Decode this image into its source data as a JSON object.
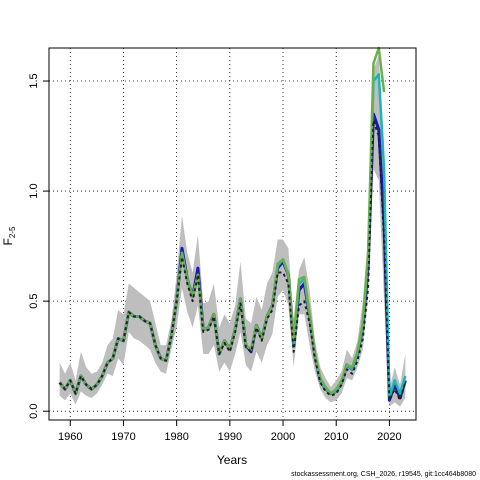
{
  "chart_data": {
    "type": "line",
    "xlabel": "Years",
    "ylabel": "F",
    "ylabel_sub": "2-5",
    "xlim": [
      1956,
      2025
    ],
    "ylim": [
      -0.04,
      1.65
    ],
    "x_ticks": [
      1960,
      1970,
      1980,
      1990,
      2000,
      2010,
      2020
    ],
    "y_ticks": [
      0.0,
      0.5,
      1.0,
      1.5
    ],
    "y_tick_labels": [
      "0.0",
      "0.5",
      "1.0",
      "1.5"
    ],
    "grid": true,
    "band": {
      "color": "#bebebe",
      "x": [
        1958,
        1959,
        1960,
        1961,
        1962,
        1963,
        1964,
        1965,
        1966,
        1967,
        1968,
        1969,
        1970,
        1971,
        1972,
        1973,
        1974,
        1975,
        1976,
        1977,
        1978,
        1979,
        1980,
        1981,
        1982,
        1983,
        1984,
        1985,
        1986,
        1987,
        1988,
        1989,
        1990,
        1991,
        1992,
        1993,
        1994,
        1995,
        1996,
        1997,
        1998,
        1999,
        2000,
        2001,
        2002,
        2003,
        2004,
        2005,
        2006,
        2007,
        2008,
        2009,
        2010,
        2011,
        2012,
        2013,
        2014,
        2015,
        2016,
        2017,
        2018,
        2019,
        2020,
        2021,
        2022,
        2023
      ],
      "lower": [
        0.07,
        0.05,
        0.08,
        0.03,
        0.09,
        0.07,
        0.06,
        0.08,
        0.12,
        0.17,
        0.16,
        0.24,
        0.21,
        0.36,
        0.33,
        0.32,
        0.3,
        0.28,
        0.22,
        0.18,
        0.17,
        0.28,
        0.38,
        0.56,
        0.45,
        0.38,
        0.48,
        0.26,
        0.26,
        0.3,
        0.18,
        0.22,
        0.18,
        0.26,
        0.36,
        0.21,
        0.18,
        0.27,
        0.22,
        0.3,
        0.35,
        0.52,
        0.55,
        0.48,
        0.2,
        0.44,
        0.44,
        0.3,
        0.18,
        0.1,
        0.06,
        0.04,
        0.05,
        0.08,
        0.15,
        0.14,
        0.2,
        0.28,
        0.52,
        1.1,
        1.05,
        0.5,
        0.02,
        0.04,
        0.02,
        0.06
      ],
      "upper": [
        0.22,
        0.17,
        0.22,
        0.14,
        0.27,
        0.2,
        0.17,
        0.18,
        0.22,
        0.3,
        0.33,
        0.46,
        0.44,
        0.58,
        0.56,
        0.54,
        0.52,
        0.5,
        0.4,
        0.3,
        0.3,
        0.41,
        0.62,
        0.89,
        0.72,
        0.63,
        0.8,
        0.49,
        0.5,
        0.58,
        0.38,
        0.44,
        0.4,
        0.48,
        0.68,
        0.42,
        0.4,
        0.52,
        0.46,
        0.58,
        0.63,
        0.78,
        0.78,
        0.74,
        0.42,
        0.64,
        0.7,
        0.55,
        0.32,
        0.2,
        0.15,
        0.11,
        0.14,
        0.18,
        0.28,
        0.24,
        0.32,
        0.5,
        0.8,
        1.55,
        1.62,
        1.2,
        0.1,
        0.2,
        0.12,
        0.26
      ]
    },
    "series": [
      {
        "color": "#1a1ab0",
        "width": 3,
        "dash": "",
        "x": [
          1958,
          1959,
          1960,
          1961,
          1962,
          1963,
          1964,
          1965,
          1966,
          1967,
          1968,
          1969,
          1970,
          1971,
          1972,
          1973,
          1974,
          1975,
          1976,
          1977,
          1978,
          1979,
          1980,
          1981,
          1982,
          1983,
          1984,
          1985,
          1986,
          1987,
          1988,
          1989,
          1990,
          1991,
          1992,
          1993,
          1994,
          1995,
          1996,
          1997,
          1998,
          1999,
          2000,
          2001,
          2002,
          2003,
          2004,
          2005,
          2006,
          2007,
          2008,
          2009,
          2010,
          2011,
          2012,
          2013,
          2014,
          2015,
          2016,
          2017,
          2018,
          2019,
          2020,
          2021,
          2022,
          2023
        ],
        "y": [
          0.13,
          0.1,
          0.14,
          0.08,
          0.16,
          0.12,
          0.1,
          0.12,
          0.16,
          0.22,
          0.24,
          0.33,
          0.32,
          0.45,
          0.43,
          0.43,
          0.41,
          0.4,
          0.3,
          0.24,
          0.23,
          0.34,
          0.5,
          0.74,
          0.6,
          0.52,
          0.65,
          0.37,
          0.38,
          0.44,
          0.26,
          0.32,
          0.28,
          0.37,
          0.51,
          0.3,
          0.27,
          0.39,
          0.33,
          0.43,
          0.48,
          0.65,
          0.68,
          0.62,
          0.3,
          0.55,
          0.58,
          0.43,
          0.25,
          0.14,
          0.1,
          0.08,
          0.09,
          0.13,
          0.21,
          0.19,
          0.26,
          0.38,
          0.66,
          1.35,
          1.28,
          0.85,
          0.05,
          0.12,
          0.06,
          0.14
        ]
      },
      {
        "color": "#1eb4b4",
        "width": 2.5,
        "dash": "",
        "x": [
          1958,
          1959,
          1960,
          1961,
          1962,
          1963,
          1964,
          1965,
          1966,
          1967,
          1968,
          1969,
          1970,
          1971,
          1972,
          1973,
          1974,
          1975,
          1976,
          1977,
          1978,
          1979,
          1980,
          1981,
          1982,
          1983,
          1984,
          1985,
          1986,
          1987,
          1988,
          1989,
          1990,
          1991,
          1992,
          1993,
          1994,
          1995,
          1996,
          1997,
          1998,
          1999,
          2000,
          2001,
          2002,
          2003,
          2004,
          2005,
          2006,
          2007,
          2008,
          2009,
          2010,
          2011,
          2012,
          2013,
          2014,
          2015,
          2016,
          2017,
          2018,
          2019,
          2020,
          2021,
          2022,
          2023
        ],
        "y": [
          0.13,
          0.1,
          0.14,
          0.08,
          0.16,
          0.12,
          0.1,
          0.12,
          0.16,
          0.22,
          0.24,
          0.33,
          0.32,
          0.45,
          0.43,
          0.43,
          0.41,
          0.4,
          0.3,
          0.24,
          0.23,
          0.34,
          0.5,
          0.72,
          0.6,
          0.52,
          0.62,
          0.37,
          0.38,
          0.44,
          0.26,
          0.32,
          0.28,
          0.37,
          0.51,
          0.3,
          0.28,
          0.39,
          0.33,
          0.43,
          0.48,
          0.66,
          0.69,
          0.62,
          0.3,
          0.58,
          0.6,
          0.43,
          0.25,
          0.14,
          0.1,
          0.08,
          0.09,
          0.13,
          0.21,
          0.19,
          0.26,
          0.39,
          0.7,
          1.5,
          1.53,
          1.1,
          0.06,
          0.14,
          0.08,
          0.16
        ]
      },
      {
        "color": "#6ab04c",
        "width": 2.5,
        "dash": "",
        "x": [
          1958,
          1959,
          1960,
          1961,
          1962,
          1963,
          1964,
          1965,
          1966,
          1967,
          1968,
          1969,
          1970,
          1971,
          1972,
          1973,
          1974,
          1975,
          1976,
          1977,
          1978,
          1979,
          1980,
          1981,
          1982,
          1983,
          1984,
          1985,
          1986,
          1987,
          1988,
          1989,
          1990,
          1991,
          1992,
          1993,
          1994,
          1995,
          1996,
          1997,
          1998,
          1999,
          2000,
          2001,
          2002,
          2003,
          2004,
          2005,
          2006,
          2007,
          2008,
          2009,
          2010,
          2011,
          2012,
          2013,
          2014,
          2015,
          2016,
          2017,
          2018,
          2019
        ],
        "y": [
          0.13,
          0.1,
          0.14,
          0.08,
          0.16,
          0.12,
          0.1,
          0.12,
          0.16,
          0.22,
          0.24,
          0.33,
          0.32,
          0.45,
          0.43,
          0.43,
          0.41,
          0.4,
          0.3,
          0.24,
          0.23,
          0.34,
          0.5,
          0.72,
          0.6,
          0.52,
          0.62,
          0.37,
          0.38,
          0.44,
          0.26,
          0.32,
          0.28,
          0.37,
          0.51,
          0.3,
          0.28,
          0.39,
          0.33,
          0.43,
          0.48,
          0.67,
          0.69,
          0.62,
          0.32,
          0.6,
          0.61,
          0.44,
          0.26,
          0.15,
          0.11,
          0.08,
          0.1,
          0.14,
          0.21,
          0.2,
          0.27,
          0.4,
          0.72,
          1.58,
          1.65,
          1.45
        ]
      },
      {
        "color": "#222222",
        "width": 2,
        "dash": "3,3",
        "x": [
          1958,
          1959,
          1960,
          1961,
          1962,
          1963,
          1964,
          1965,
          1966,
          1967,
          1968,
          1969,
          1970,
          1971,
          1972,
          1973,
          1974,
          1975,
          1976,
          1977,
          1978,
          1979,
          1980,
          1981,
          1982,
          1983,
          1984,
          1985,
          1986,
          1987,
          1988,
          1989,
          1990,
          1991,
          1992,
          1993,
          1994,
          1995,
          1996,
          1997,
          1998,
          1999,
          2000,
          2001,
          2002,
          2003,
          2004,
          2005,
          2006,
          2007,
          2008,
          2009,
          2010,
          2011,
          2012,
          2013,
          2014,
          2015,
          2016,
          2017,
          2018,
          2019,
          2020,
          2021,
          2022,
          2023
        ],
        "y": [
          0.13,
          0.1,
          0.14,
          0.08,
          0.16,
          0.12,
          0.1,
          0.12,
          0.16,
          0.22,
          0.24,
          0.33,
          0.32,
          0.45,
          0.43,
          0.43,
          0.41,
          0.4,
          0.3,
          0.24,
          0.23,
          0.34,
          0.5,
          0.7,
          0.58,
          0.5,
          0.62,
          0.36,
          0.37,
          0.43,
          0.26,
          0.31,
          0.27,
          0.36,
          0.49,
          0.29,
          0.27,
          0.38,
          0.32,
          0.42,
          0.46,
          0.63,
          0.63,
          0.58,
          0.27,
          0.48,
          0.5,
          0.4,
          0.24,
          0.13,
          0.09,
          0.07,
          0.08,
          0.12,
          0.19,
          0.17,
          0.23,
          0.33,
          0.56,
          1.32,
          1.25,
          0.78,
          0.05,
          0.1,
          0.05,
          0.13
        ]
      }
    ]
  },
  "footer_text": "stockassessment.org, CSH_2026, r19545, git:1cc464b8080"
}
